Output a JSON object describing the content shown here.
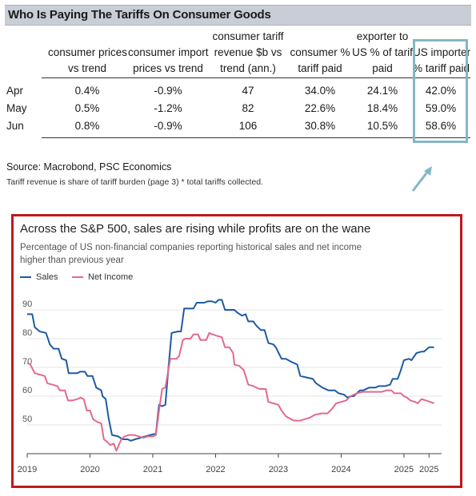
{
  "table": {
    "title": "Who Is Paying The Tariffs On Consumer Goods",
    "headers": [
      [
        "consumer prices",
        "vs trend"
      ],
      [
        "consumer import",
        "prices vs trend"
      ],
      [
        "consumer tariff",
        "revenue $b vs",
        "trend (ann.)"
      ],
      [
        "consumer %",
        "tariff paid"
      ],
      [
        "exporter to",
        "US  % of tarif",
        "paid"
      ],
      [
        "US importer",
        "% tariff paid"
      ]
    ],
    "rows": [
      {
        "label": "Apr",
        "values": [
          "0.4%",
          "-0.9%",
          "47",
          "34.0%",
          "24.1%",
          "42.0%"
        ]
      },
      {
        "label": "May",
        "values": [
          "0.5%",
          "-1.2%",
          "82",
          "22.6%",
          "18.4%",
          "59.0%"
        ]
      },
      {
        "label": "Jun",
        "values": [
          "0.8%",
          "-0.9%",
          "106",
          "30.8%",
          "10.5%",
          "58.6%"
        ]
      }
    ],
    "source": "Source: Macrobond, PSC Economics",
    "footnote": "Tariff revenue is share of tariff burden (page 3) * total tariffs collected.",
    "highlight_color": "#84b7c6"
  },
  "chart_data": {
    "type": "line",
    "title": "Across the S&P 500, sales are rising while profits are on the wane",
    "subtitle_lines": [
      "Percentage of US non-financial companies reporting historical sales and net income",
      "higher than previous year"
    ],
    "xlim": [
      2019,
      2025.6
    ],
    "ylim": [
      40,
      95
    ],
    "yticks": [
      50,
      60,
      70,
      80,
      90
    ],
    "xtick_labels": [
      {
        "x": 2019,
        "label": "2019"
      },
      {
        "x": 2020,
        "label": "2020"
      },
      {
        "x": 2021,
        "label": "2021"
      },
      {
        "x": 2022,
        "label": "2022"
      },
      {
        "x": 2023,
        "label": "2023"
      },
      {
        "x": 2024,
        "label": "2024"
      },
      {
        "x": 2025,
        "label": "2025"
      },
      {
        "x": 2025.4,
        "label": "2025"
      }
    ],
    "grid": "horizontal",
    "legend_position": "top-left",
    "series": [
      {
        "name": "Sales",
        "color": "#1f5aa6",
        "points": [
          [
            2019.0,
            88.5
          ],
          [
            2019.08,
            88.5
          ],
          [
            2019.12,
            84
          ],
          [
            2019.2,
            82.5
          ],
          [
            2019.3,
            82
          ],
          [
            2019.36,
            78
          ],
          [
            2019.42,
            76.5
          ],
          [
            2019.5,
            76.5
          ],
          [
            2019.55,
            73
          ],
          [
            2019.62,
            72.5
          ],
          [
            2019.66,
            68
          ],
          [
            2019.8,
            68
          ],
          [
            2019.84,
            68.5
          ],
          [
            2019.92,
            68.5
          ],
          [
            2019.96,
            67
          ],
          [
            2020.04,
            67
          ],
          [
            2020.1,
            63
          ],
          [
            2020.18,
            62
          ],
          [
            2020.2,
            60
          ],
          [
            2020.25,
            59
          ],
          [
            2020.3,
            52
          ],
          [
            2020.35,
            46.5
          ],
          [
            2020.45,
            46
          ],
          [
            2020.52,
            45
          ],
          [
            2020.6,
            45
          ],
          [
            2020.65,
            44.5
          ],
          [
            2020.72,
            45
          ],
          [
            2020.8,
            45.5
          ],
          [
            2020.88,
            46
          ],
          [
            2020.96,
            46.5
          ],
          [
            2021.05,
            47
          ],
          [
            2021.1,
            57
          ],
          [
            2021.15,
            56.5
          ],
          [
            2021.2,
            57
          ],
          [
            2021.25,
            70
          ],
          [
            2021.3,
            82
          ],
          [
            2021.4,
            82.5
          ],
          [
            2021.45,
            82.5
          ],
          [
            2021.5,
            90.5
          ],
          [
            2021.65,
            90.5
          ],
          [
            2021.7,
            92.5
          ],
          [
            2021.82,
            92.5
          ],
          [
            2021.88,
            93
          ],
          [
            2021.94,
            93
          ],
          [
            2022.0,
            92.5
          ],
          [
            2022.05,
            93.5
          ],
          [
            2022.1,
            93.5
          ],
          [
            2022.15,
            90
          ],
          [
            2022.3,
            90
          ],
          [
            2022.35,
            89
          ],
          [
            2022.42,
            88
          ],
          [
            2022.48,
            88.5
          ],
          [
            2022.52,
            86
          ],
          [
            2022.6,
            86
          ],
          [
            2022.65,
            84.5
          ],
          [
            2022.72,
            83
          ],
          [
            2022.78,
            83
          ],
          [
            2022.84,
            78.5
          ],
          [
            2022.92,
            78
          ],
          [
            2022.96,
            77
          ],
          [
            2023.05,
            73
          ],
          [
            2023.12,
            73
          ],
          [
            2023.2,
            72
          ],
          [
            2023.3,
            71
          ],
          [
            2023.35,
            67
          ],
          [
            2023.45,
            66.5
          ],
          [
            2023.55,
            66
          ],
          [
            2023.6,
            64.5
          ],
          [
            2023.7,
            63
          ],
          [
            2023.8,
            62
          ],
          [
            2023.9,
            62
          ],
          [
            2023.96,
            61
          ],
          [
            2024.05,
            60.5
          ],
          [
            2024.1,
            59.5
          ],
          [
            2024.15,
            60
          ],
          [
            2024.2,
            60
          ],
          [
            2024.25,
            61
          ],
          [
            2024.3,
            62
          ],
          [
            2024.35,
            62
          ],
          [
            2024.45,
            63
          ],
          [
            2024.55,
            63
          ],
          [
            2024.6,
            63.5
          ],
          [
            2024.7,
            63.5
          ],
          [
            2024.78,
            64
          ],
          [
            2024.82,
            66
          ],
          [
            2024.9,
            66
          ],
          [
            2024.95,
            69
          ],
          [
            2025.0,
            72.5
          ],
          [
            2025.08,
            73
          ],
          [
            2025.12,
            72.5
          ],
          [
            2025.2,
            75
          ],
          [
            2025.28,
            75.5
          ],
          [
            2025.32,
            75.5
          ],
          [
            2025.4,
            77
          ],
          [
            2025.48,
            77
          ]
        ]
      },
      {
        "name": "Net Income",
        "color": "#e36a8b",
        "points": [
          [
            2019.0,
            71.5
          ],
          [
            2019.05,
            71
          ],
          [
            2019.12,
            68
          ],
          [
            2019.2,
            67.5
          ],
          [
            2019.28,
            67
          ],
          [
            2019.32,
            64.5
          ],
          [
            2019.4,
            64
          ],
          [
            2019.48,
            63.5
          ],
          [
            2019.52,
            62
          ],
          [
            2019.6,
            62
          ],
          [
            2019.65,
            58.5
          ],
          [
            2019.72,
            58.5
          ],
          [
            2019.8,
            59
          ],
          [
            2019.85,
            59.5
          ],
          [
            2019.9,
            59
          ],
          [
            2019.95,
            55
          ],
          [
            2020.0,
            55
          ],
          [
            2020.05,
            52
          ],
          [
            2020.12,
            51
          ],
          [
            2020.18,
            50.5
          ],
          [
            2020.22,
            45
          ],
          [
            2020.28,
            44
          ],
          [
            2020.32,
            43
          ],
          [
            2020.38,
            43.5
          ],
          [
            2020.42,
            41
          ],
          [
            2020.5,
            45
          ],
          [
            2020.55,
            46
          ],
          [
            2020.62,
            46.5
          ],
          [
            2020.7,
            46.5
          ],
          [
            2020.78,
            46
          ],
          [
            2020.85,
            45.5
          ],
          [
            2020.92,
            46
          ],
          [
            2021.0,
            46
          ],
          [
            2021.05,
            46.5
          ],
          [
            2021.1,
            55
          ],
          [
            2021.15,
            62.5
          ],
          [
            2021.2,
            63
          ],
          [
            2021.28,
            73
          ],
          [
            2021.38,
            73
          ],
          [
            2021.42,
            74
          ],
          [
            2021.48,
            79.5
          ],
          [
            2021.52,
            80
          ],
          [
            2021.6,
            80
          ],
          [
            2021.65,
            81.5
          ],
          [
            2021.72,
            81.5
          ],
          [
            2021.76,
            79.5
          ],
          [
            2021.85,
            79.5
          ],
          [
            2021.9,
            82
          ],
          [
            2021.95,
            81.5
          ],
          [
            2022.02,
            81
          ],
          [
            2022.1,
            80.5
          ],
          [
            2022.15,
            77
          ],
          [
            2022.22,
            77
          ],
          [
            2022.28,
            75
          ],
          [
            2022.3,
            71
          ],
          [
            2022.38,
            70.5
          ],
          [
            2022.45,
            69
          ],
          [
            2022.52,
            64
          ],
          [
            2022.6,
            63.5
          ],
          [
            2022.7,
            62.5
          ],
          [
            2022.8,
            62.5
          ],
          [
            2022.84,
            58
          ],
          [
            2022.92,
            57.5
          ],
          [
            2023.0,
            57
          ],
          [
            2023.05,
            55
          ],
          [
            2023.12,
            53
          ],
          [
            2023.2,
            52
          ],
          [
            2023.25,
            51.5
          ],
          [
            2023.35,
            51.5
          ],
          [
            2023.42,
            52
          ],
          [
            2023.5,
            52.5
          ],
          [
            2023.58,
            53.5
          ],
          [
            2023.68,
            54
          ],
          [
            2023.78,
            54
          ],
          [
            2023.85,
            55.5
          ],
          [
            2023.92,
            57.5
          ],
          [
            2024.0,
            58
          ],
          [
            2024.08,
            58.5
          ],
          [
            2024.15,
            60
          ],
          [
            2024.25,
            61
          ],
          [
            2024.35,
            61.5
          ],
          [
            2024.45,
            61.5
          ],
          [
            2024.55,
            61.5
          ],
          [
            2024.65,
            61.5
          ],
          [
            2024.72,
            62
          ],
          [
            2024.8,
            62
          ],
          [
            2024.85,
            61
          ],
          [
            2024.95,
            61
          ],
          [
            2025.0,
            60
          ],
          [
            2025.05,
            59.5
          ],
          [
            2025.1,
            58.5
          ],
          [
            2025.18,
            58
          ],
          [
            2025.22,
            57.5
          ],
          [
            2025.28,
            59
          ],
          [
            2025.35,
            58.5
          ],
          [
            2025.42,
            58
          ],
          [
            2025.48,
            57.5
          ]
        ]
      }
    ]
  }
}
